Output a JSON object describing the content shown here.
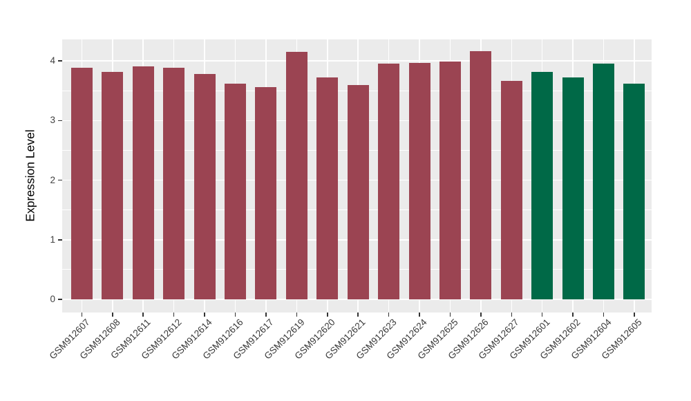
{
  "chart_data": {
    "type": "bar",
    "title": "",
    "xlabel": "",
    "ylabel": "Expression Level",
    "categories": [
      "GSM912607",
      "GSM912608",
      "GSM912611",
      "GSM912612",
      "GSM912614",
      "GSM912616",
      "GSM912617",
      "GSM912619",
      "GSM912620",
      "GSM912621",
      "GSM912623",
      "GSM912624",
      "GSM912625",
      "GSM912626",
      "GSM912627",
      "GSM912601",
      "GSM912602",
      "GSM912604",
      "GSM912605"
    ],
    "values": [
      3.88,
      3.82,
      3.91,
      3.88,
      3.78,
      3.62,
      3.56,
      4.15,
      3.72,
      3.6,
      3.95,
      3.96,
      3.99,
      4.16,
      3.66,
      3.82,
      3.72,
      3.95,
      3.62
    ],
    "bar_colors": [
      "#9B4452",
      "#9B4452",
      "#9B4452",
      "#9B4452",
      "#9B4452",
      "#9B4452",
      "#9B4452",
      "#9B4452",
      "#9B4452",
      "#9B4452",
      "#9B4452",
      "#9B4452",
      "#9B4452",
      "#9B4452",
      "#9B4452",
      "#006947",
      "#006947",
      "#006947",
      "#006947"
    ],
    "color_groups": [
      {
        "color": "#9B4452",
        "count": 15
      },
      {
        "color": "#006947",
        "count": 4
      }
    ],
    "ylim": [
      -0.21,
      4.36
    ],
    "yticks": [
      0,
      1,
      2,
      3,
      4
    ],
    "minor_yticks": [
      0.5,
      1.5,
      2.5,
      3.5
    ],
    "grid": true,
    "legend": "none",
    "panel_background": "#EBEBEB",
    "grid_color": "#FFFFFF",
    "tick_color": "#333333",
    "axis_text_color": "#404040"
  }
}
